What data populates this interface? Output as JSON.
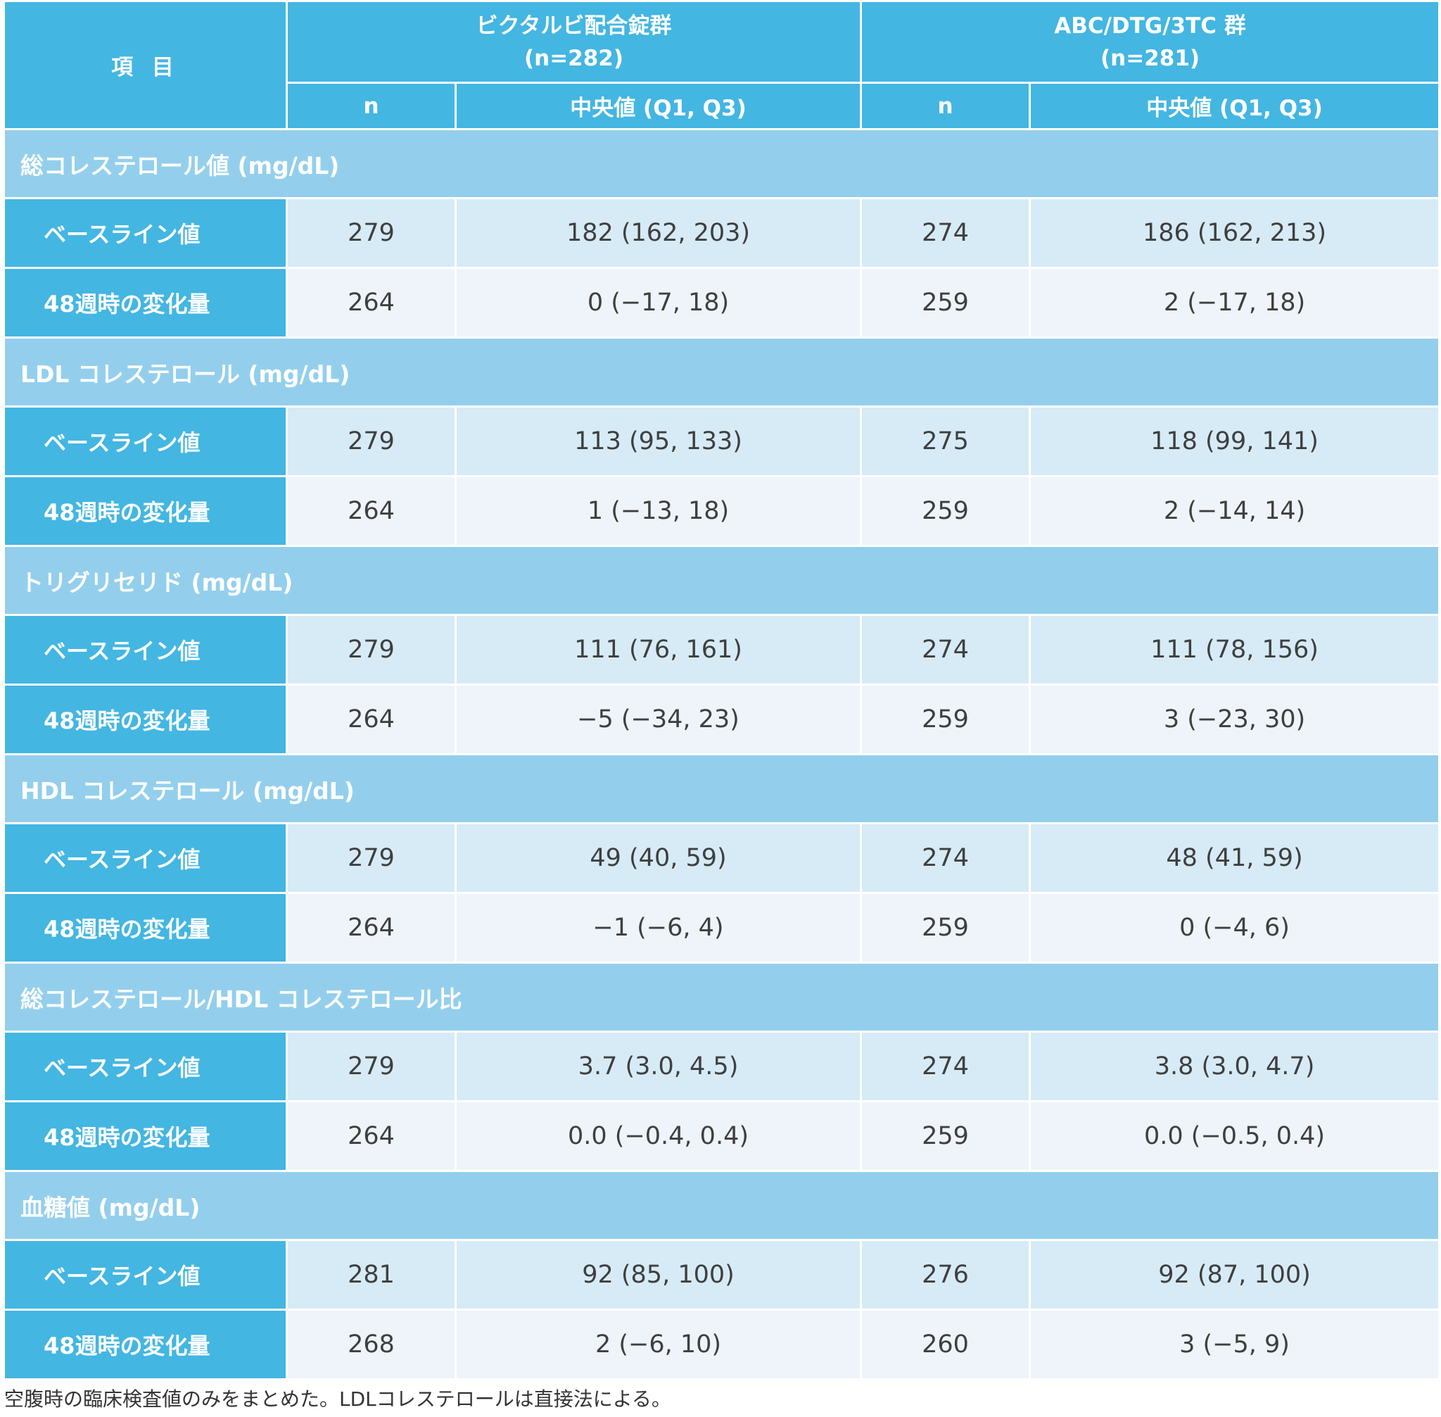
{
  "header": {
    "item": "項 目",
    "group1_line1": "ビクタルビ配合錠群",
    "group1_line2": "(n=282)",
    "group2_line1": "ABC/DTG/3TC 群",
    "group2_line2": "(n=281)",
    "n": "n",
    "median": "中央値 (Q1, Q3)"
  },
  "sections": [
    {
      "title": "総コレステロール値 (mg/dL)",
      "rows": [
        {
          "label": "ベースライン値",
          "n1": "279",
          "v1": "182 (162, 203)",
          "n2": "274",
          "v2": "186 (162, 213)"
        },
        {
          "label": "48週時の変化量",
          "n1": "264",
          "v1": "0 (−17, 18)",
          "n2": "259",
          "v2": "2 (−17, 18)"
        }
      ]
    },
    {
      "title": "LDL コレステロール (mg/dL)",
      "rows": [
        {
          "label": "ベースライン値",
          "n1": "279",
          "v1": "113 (95, 133)",
          "n2": "275",
          "v2": "118 (99, 141)"
        },
        {
          "label": "48週時の変化量",
          "n1": "264",
          "v1": "1 (−13, 18)",
          "n2": "259",
          "v2": "2 (−14, 14)"
        }
      ]
    },
    {
      "title": "トリグリセリド (mg/dL)",
      "rows": [
        {
          "label": "ベースライン値",
          "n1": "279",
          "v1": "111 (76, 161)",
          "n2": "274",
          "v2": "111 (78, 156)"
        },
        {
          "label": "48週時の変化量",
          "n1": "264",
          "v1": "−5 (−34, 23)",
          "n2": "259",
          "v2": "3 (−23, 30)"
        }
      ]
    },
    {
      "title": "HDL コレステロール (mg/dL)",
      "rows": [
        {
          "label": "ベースライン値",
          "n1": "279",
          "v1": "49 (40, 59)",
          "n2": "274",
          "v2": "48 (41, 59)"
        },
        {
          "label": "48週時の変化量",
          "n1": "264",
          "v1": "−1 (−6, 4)",
          "n2": "259",
          "v2": "0 (−4, 6)"
        }
      ]
    },
    {
      "title": "総コレステロール/HDL コレステロール比",
      "rows": [
        {
          "label": "ベースライン値",
          "n1": "279",
          "v1": "3.7 (3.0, 4.5)",
          "n2": "274",
          "v2": "3.8 (3.0, 4.7)"
        },
        {
          "label": "48週時の変化量",
          "n1": "264",
          "v1": "0.0 (−0.4, 0.4)",
          "n2": "259",
          "v2": "0.0 (−0.5, 0.4)"
        }
      ]
    },
    {
      "title": "血糖値 (mg/dL)",
      "rows": [
        {
          "label": "ベースライン値",
          "n1": "281",
          "v1": "92 (85, 100)",
          "n2": "276",
          "v2": "92 (87, 100)"
        },
        {
          "label": "48週時の変化量",
          "n1": "268",
          "v1": "2 (−6, 10)",
          "n2": "260",
          "v2": "3 (−5, 9)"
        }
      ]
    }
  ],
  "footnote": "空腹時の臨床検査値のみをまとめた。LDLコレステロールは直接法による。"
}
